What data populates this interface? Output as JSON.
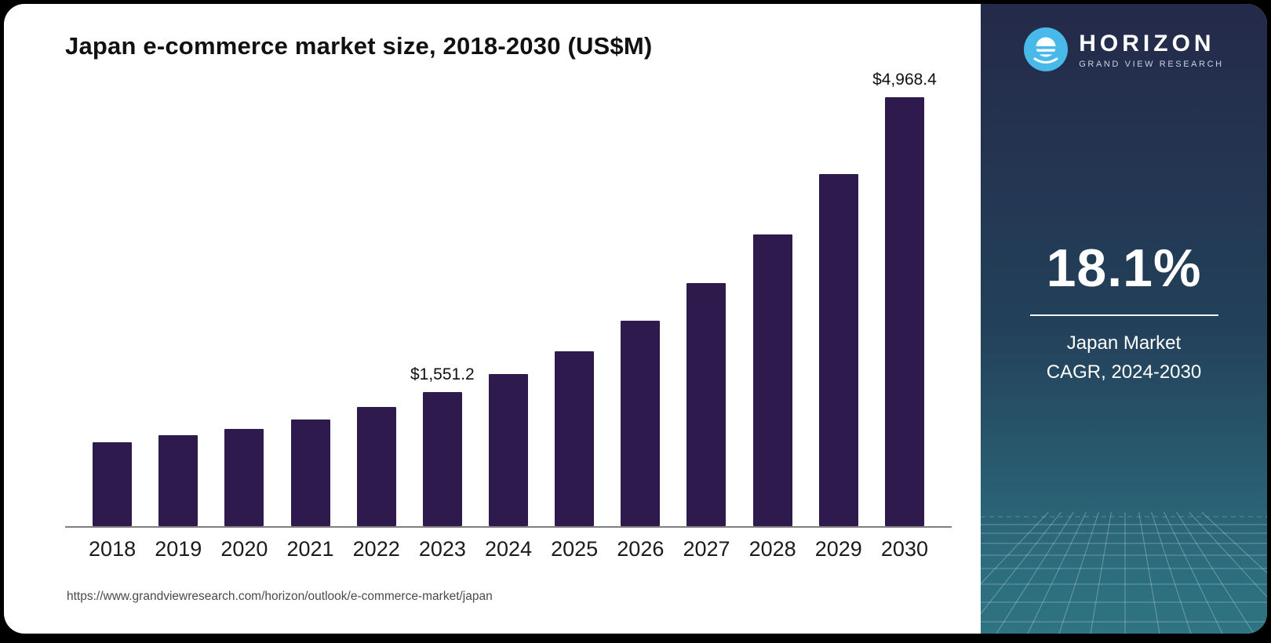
{
  "header": {
    "title": "Japan e-commerce market size, 2018-2030 (US$M)",
    "source_url": "https://www.grandviewresearch.com/horizon/outlook/e-commerce-market/japan"
  },
  "sidebar": {
    "brand_name": "HORIZON",
    "brand_tagline": "GRAND VIEW RESEARCH",
    "stat_value": "18.1%",
    "stat_label_line1": "Japan Market",
    "stat_label_line2": "CAGR, 2024-2030",
    "colors": {
      "gradient_top": "#242a49",
      "gradient_bottom": "#2f7482",
      "logo_blue": "#49b9ea"
    }
  },
  "chart_data": {
    "type": "bar",
    "title": "Japan e-commerce market size, 2018-2030 (US$M)",
    "unit": "US$M",
    "categories": [
      2018,
      2019,
      2020,
      2021,
      2022,
      2023,
      2024,
      2025,
      2026,
      2027,
      2028,
      2029,
      2030
    ],
    "values": [
      975,
      1055,
      1130,
      1240,
      1385,
      1551.2,
      1760,
      2030,
      2380,
      2815,
      3385,
      4080,
      4968.4
    ],
    "value_labels": {
      "2023": "$1,551.2",
      "2030": "$4,968.4"
    },
    "xlabel": "",
    "ylabel": "US$M",
    "ylim": [
      0,
      5000
    ],
    "bar_color": "#2e1a4c",
    "grid": false,
    "legend": false
  }
}
